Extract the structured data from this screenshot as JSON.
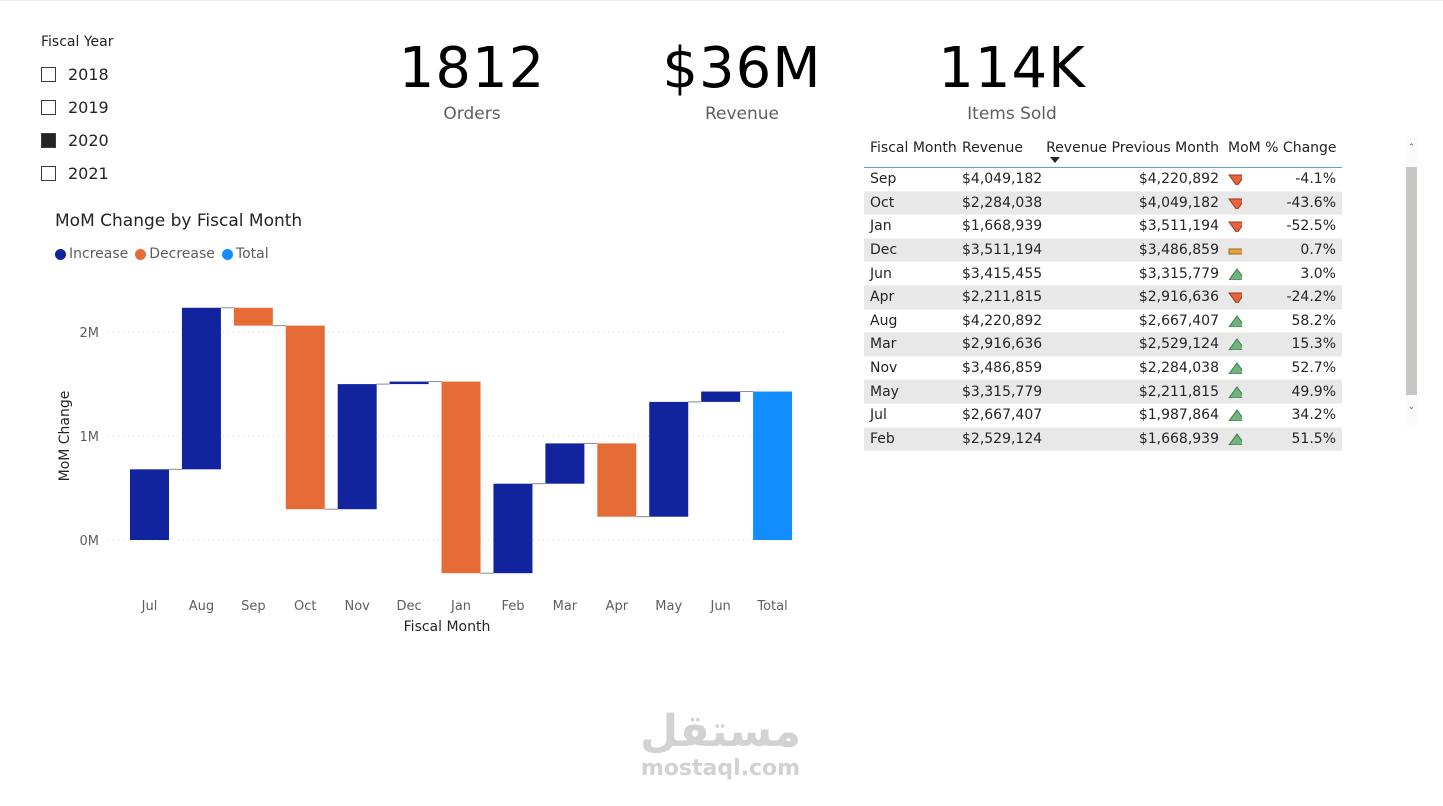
{
  "slicer": {
    "title": "Fiscal Year",
    "items": [
      {
        "label": "2018",
        "checked": false
      },
      {
        "label": "2019",
        "checked": false
      },
      {
        "label": "2020",
        "checked": true
      },
      {
        "label": "2021",
        "checked": false
      }
    ]
  },
  "kpis": [
    {
      "value": "1812",
      "label": "Orders"
    },
    {
      "value": "$36M",
      "label": "Revenue"
    },
    {
      "value": "114K",
      "label": "Items Sold"
    }
  ],
  "chart": {
    "title": "MoM Change by Fiscal Month",
    "legend": [
      {
        "label": "Increase",
        "color": "#12239e"
      },
      {
        "label": "Decrease",
        "color": "#e66c37"
      },
      {
        "label": "Total",
        "color": "#118dff"
      }
    ]
  },
  "chart_data": {
    "type": "waterfall",
    "title": "MoM Change by Fiscal Month",
    "xlabel": "Fiscal Month",
    "ylabel": "MoM Change",
    "categories": [
      "Jul",
      "Aug",
      "Sep",
      "Oct",
      "Nov",
      "Dec",
      "Jan",
      "Feb",
      "Mar",
      "Apr",
      "May",
      "Jun",
      "Total"
    ],
    "values": [
      679543,
      1553485,
      -171710,
      -1765144,
      1202821,
      24335,
      -1842255,
      860185,
      387512,
      -704821,
      1103964,
      99676,
      1427591
    ],
    "kinds": [
      "increase",
      "increase",
      "decrease",
      "decrease",
      "increase",
      "increase",
      "decrease",
      "increase",
      "increase",
      "decrease",
      "increase",
      "increase",
      "total"
    ],
    "yticks": [
      {
        "value": 0,
        "label": "0M"
      },
      {
        "value": 1000000,
        "label": "1M"
      },
      {
        "value": 2000000,
        "label": "2M"
      }
    ],
    "ylim": [
      -400000,
      2600000
    ],
    "grid": true,
    "legend": [
      "Increase",
      "Decrease",
      "Total"
    ]
  },
  "table": {
    "headers": [
      "Fiscal Month",
      "Revenue",
      "Revenue Previous Month",
      "MoM % Change"
    ],
    "rows": [
      {
        "month": "Sep",
        "revenue": "$4,049,182",
        "prev": "$4,220,892",
        "indicator": "down",
        "change": "-4.1%"
      },
      {
        "month": "Oct",
        "revenue": "$2,284,038",
        "prev": "$4,049,182",
        "indicator": "down",
        "change": "-43.6%"
      },
      {
        "month": "Jan",
        "revenue": "$1,668,939",
        "prev": "$3,511,194",
        "indicator": "down",
        "change": "-52.5%"
      },
      {
        "month": "Dec",
        "revenue": "$3,511,194",
        "prev": "$3,486,859",
        "indicator": "flat",
        "change": "0.7%"
      },
      {
        "month": "Jun",
        "revenue": "$3,415,455",
        "prev": "$3,315,779",
        "indicator": "up",
        "change": "3.0%"
      },
      {
        "month": "Apr",
        "revenue": "$2,211,815",
        "prev": "$2,916,636",
        "indicator": "down",
        "change": "-24.2%"
      },
      {
        "month": "Aug",
        "revenue": "$4,220,892",
        "prev": "$2,667,407",
        "indicator": "up",
        "change": "58.2%"
      },
      {
        "month": "Mar",
        "revenue": "$2,916,636",
        "prev": "$2,529,124",
        "indicator": "up",
        "change": "15.3%"
      },
      {
        "month": "Nov",
        "revenue": "$3,486,859",
        "prev": "$2,284,038",
        "indicator": "up",
        "change": "52.7%"
      },
      {
        "month": "May",
        "revenue": "$3,315,779",
        "prev": "$2,211,815",
        "indicator": "up",
        "change": "49.9%"
      },
      {
        "month": "Jul",
        "revenue": "$2,667,407",
        "prev": "$1,987,864",
        "indicator": "up",
        "change": "34.2%"
      },
      {
        "month": "Feb",
        "revenue": "$2,529,124",
        "prev": "$1,668,939",
        "indicator": "up",
        "change": "51.5%"
      }
    ]
  },
  "scrollbar": {
    "up": "⌃",
    "down": "⌄"
  },
  "watermark": {
    "arabic": "مستقل",
    "latin": "mostaql.com"
  }
}
